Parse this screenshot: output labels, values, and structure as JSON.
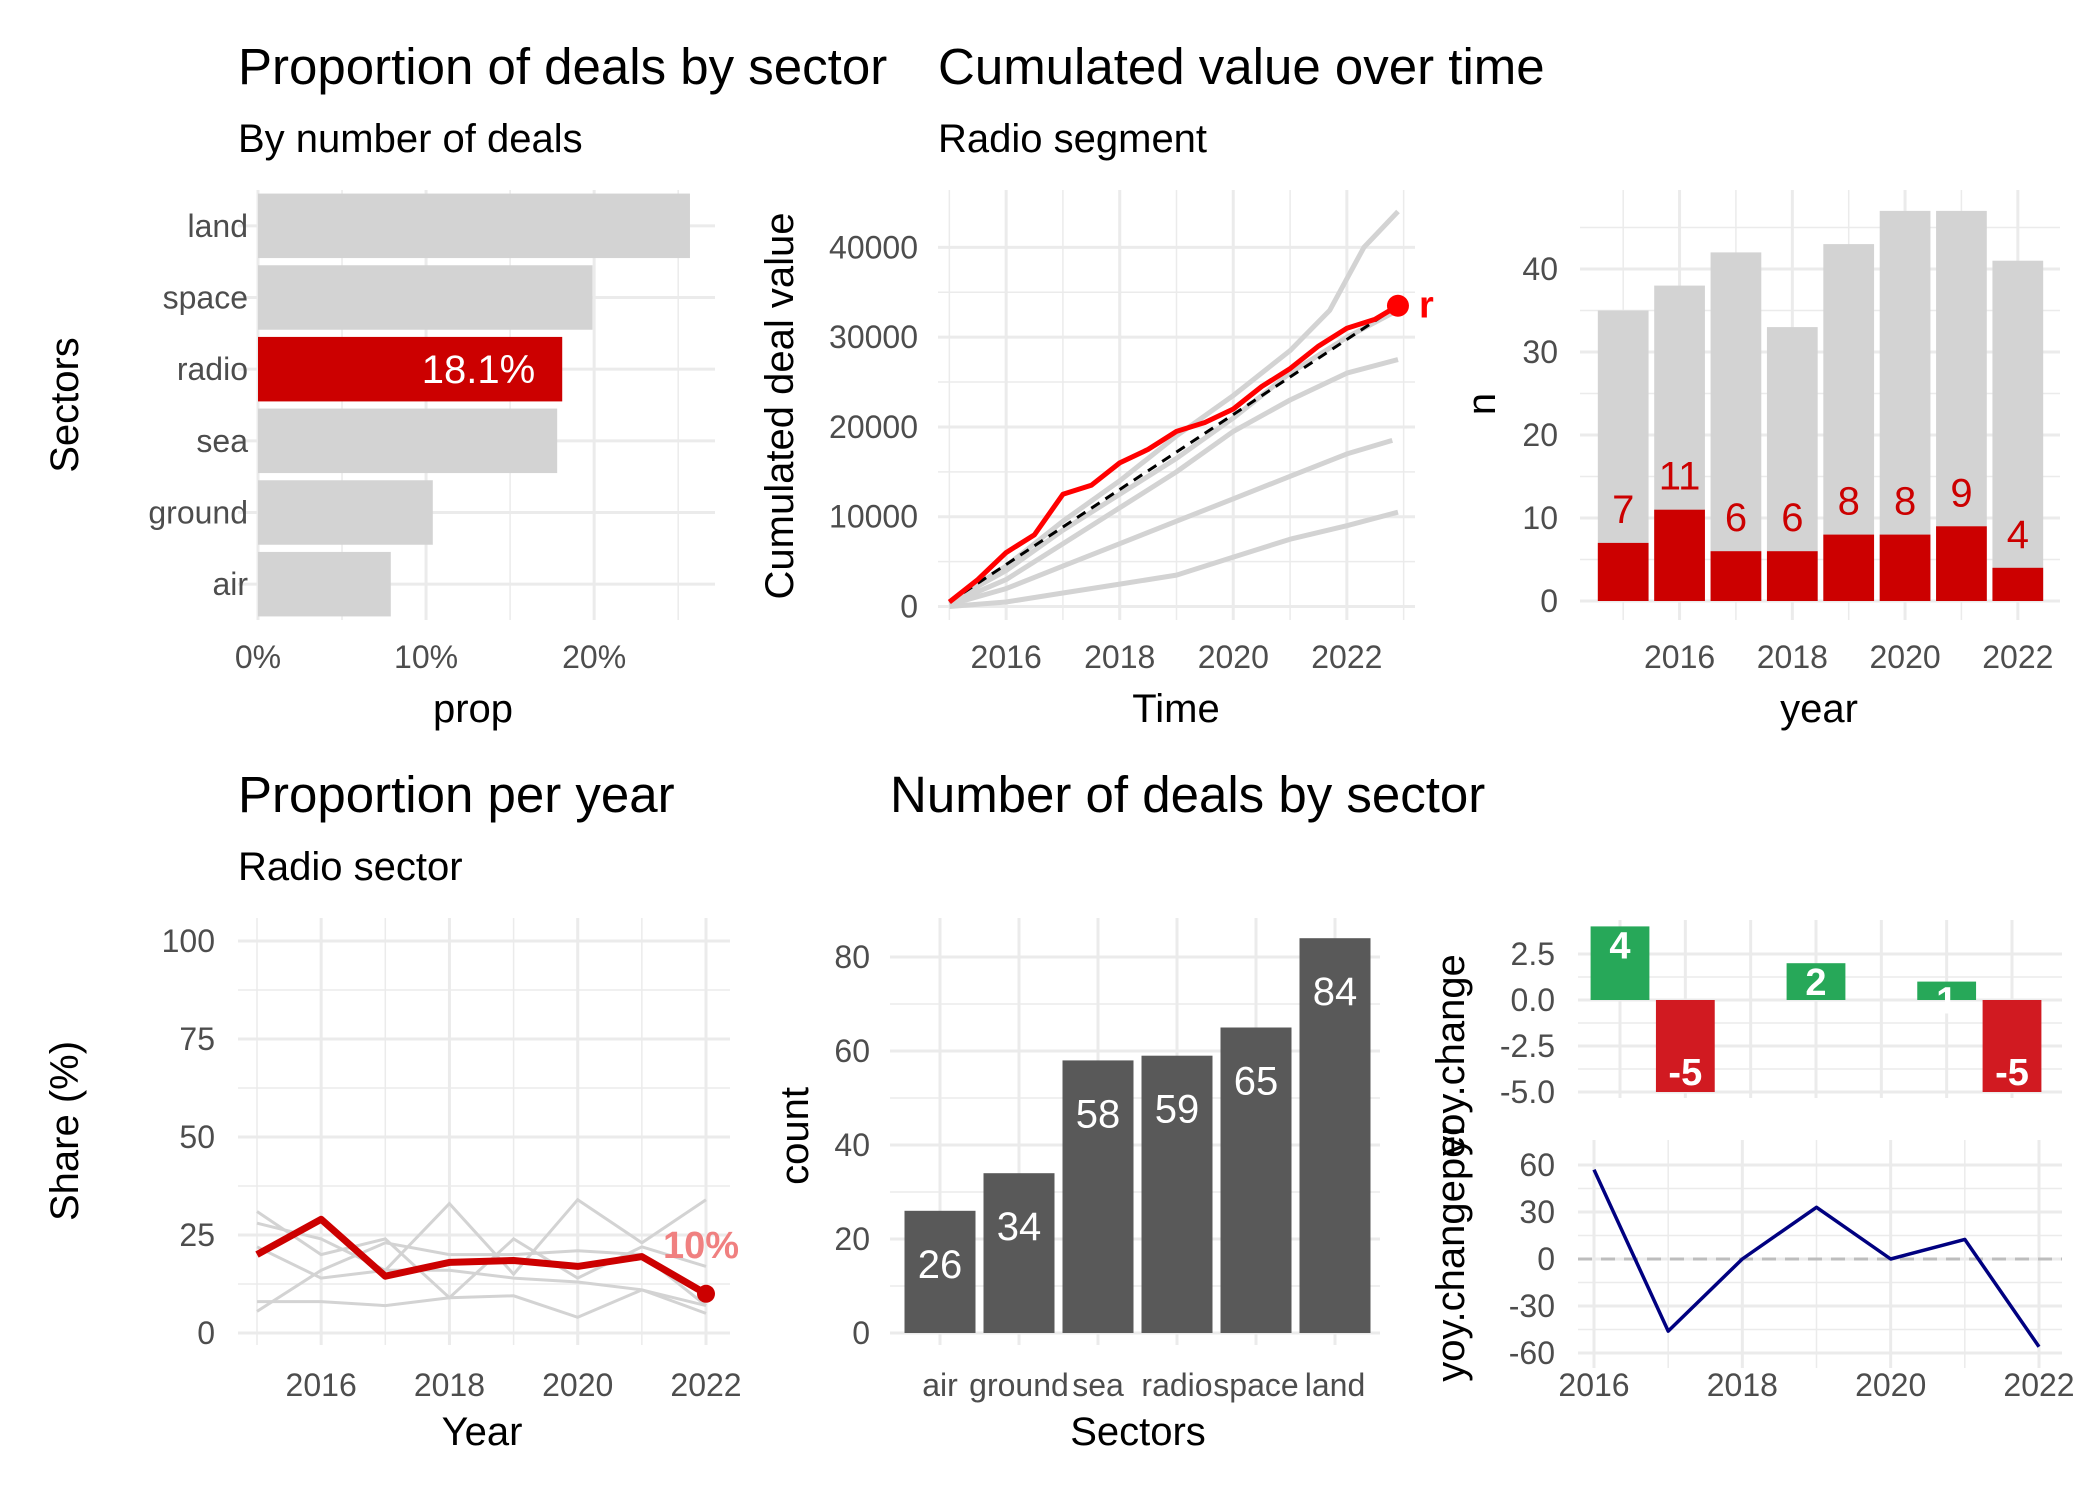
{
  "colors": {
    "highlight_red": "#cc0000",
    "line_red": "#ff0000",
    "grey_bar": "#d3d3d3",
    "dark_bar": "#595959",
    "pos_green": "#27a859",
    "neg_red": "#d11a21",
    "navy": "#000080",
    "label_salmon": "#f08080"
  },
  "chart_data": [
    {
      "id": "sector_share",
      "type": "bar",
      "orientation": "horizontal",
      "title": "Proportion of deals by sector",
      "subtitle": "By number of deals",
      "xlabel": "prop",
      "ylabel": "Sectors",
      "categories": [
        "air",
        "ground",
        "sea",
        "radio",
        "space",
        "land"
      ],
      "values": [
        0.079,
        0.104,
        0.178,
        0.181,
        0.199,
        0.257
      ],
      "highlight": "radio",
      "highlight_label": "18.1%",
      "xlim": [
        0,
        0.26
      ],
      "xticks": [
        "0%",
        "10%",
        "20%"
      ]
    },
    {
      "id": "cumulative",
      "type": "line",
      "title": "Cumulated value over time",
      "subtitle": "Radio segment",
      "xlabel": "Time",
      "ylabel": "Cumulated deal value",
      "xlim": [
        2014.8,
        2023.2
      ],
      "ylim": [
        -500,
        45500
      ],
      "yticks": [
        "0",
        "10000",
        "20000",
        "30000",
        "40000"
      ],
      "xticks": [
        "2016",
        "2018",
        "2020",
        "2022"
      ],
      "end_label": "r",
      "background_series": [
        {
          "x": [
            2015,
            2016,
            2017,
            2018,
            2019,
            2020,
            2021,
            2021.7,
            2022.3,
            2022.9
          ],
          "y": [
            500,
            4500,
            9500,
            14000,
            19000,
            23500,
            28500,
            33000,
            40000,
            44000
          ]
        },
        {
          "x": [
            2015,
            2016,
            2017,
            2018,
            2019,
            2020,
            2021,
            2022,
            2022.9
          ],
          "y": [
            500,
            4000,
            8500,
            12500,
            16500,
            21000,
            26000,
            30000,
            33000
          ]
        },
        {
          "x": [
            2015,
            2016,
            2017,
            2018,
            2019,
            2020,
            2021,
            2022,
            2022.9
          ],
          "y": [
            300,
            3000,
            7000,
            11000,
            15000,
            19500,
            23000,
            26000,
            27500
          ]
        },
        {
          "x": [
            2015,
            2016,
            2017,
            2018,
            2019,
            2020,
            2021,
            2022,
            2022.8
          ],
          "y": [
            200,
            2000,
            4500,
            7000,
            9500,
            12000,
            14500,
            17000,
            18500
          ]
        },
        {
          "x": [
            2015,
            2016,
            2017,
            2018,
            2019,
            2020,
            2021,
            2022,
            2022.9
          ],
          "y": [
            0,
            500,
            1500,
            2500,
            3500,
            5500,
            7500,
            9000,
            10500
          ]
        }
      ],
      "highlight_series": {
        "x": [
          2015,
          2015.5,
          2016,
          2016.5,
          2017,
          2017.5,
          2018,
          2018.5,
          2019,
          2019.5,
          2020,
          2020.5,
          2021,
          2021.5,
          2022,
          2022.5,
          2022.9
        ],
        "y": [
          500,
          3000,
          6000,
          8000,
          12500,
          13500,
          16000,
          17500,
          19500,
          20500,
          22000,
          24500,
          26500,
          29000,
          31000,
          32000,
          33500
        ]
      },
      "reference_line": {
        "x": [
          2015,
          2022.9
        ],
        "y": [
          500,
          33500
        ]
      }
    },
    {
      "id": "counts_per_year",
      "type": "bar",
      "xlabel": "year",
      "ylabel": "n",
      "categories": [
        2015,
        2016,
        2017,
        2018,
        2019,
        2020,
        2021,
        2022
      ],
      "series": [
        {
          "name": "",
          "values": [
            35,
            38,
            42,
            33,
            43,
            47,
            47,
            41
          ]
        },
        {
          "name": "",
          "values": [
            7,
            11,
            6,
            6,
            8,
            8,
            9,
            4
          ]
        }
      ],
      "labels": [
        "7",
        "11",
        "6",
        "6",
        "8",
        "8",
        "9",
        "4"
      ],
      "ylim": [
        -1.5,
        50
      ],
      "yticks": [
        "0",
        "10",
        "20",
        "30",
        "40"
      ],
      "xticks": [
        "2016",
        "2018",
        "2020",
        "2022"
      ]
    },
    {
      "id": "share_per_year",
      "type": "line",
      "title": "Proportion per year",
      "subtitle": "Radio sector",
      "xlabel": "Year",
      "ylabel": "Share (%)",
      "x": [
        2015,
        2016,
        2017,
        2018,
        2019,
        2020,
        2021,
        2022
      ],
      "highlight_values": [
        20,
        29,
        14.5,
        18,
        18.5,
        17,
        19.5,
        10
      ],
      "background_series": [
        {
          "values": [
            31,
            20,
            24,
            9,
            24,
            14,
            22,
            17
          ]
        },
        {
          "values": [
            28,
            24,
            16,
            33,
            15,
            34,
            23,
            34
          ]
        },
        {
          "values": [
            5.5,
            16,
            23,
            20,
            20,
            21,
            20,
            7
          ]
        },
        {
          "values": [
            8,
            8,
            7,
            9,
            9.5,
            4,
            11,
            7
          ]
        },
        {
          "values": [
            22,
            14,
            16,
            16,
            14,
            13,
            11,
            5
          ]
        }
      ],
      "end_label": "10%",
      "ylim": [
        -4,
        104
      ],
      "yticks": [
        "0",
        "25",
        "50",
        "75",
        "100"
      ],
      "xticks": [
        "2016",
        "2018",
        "2020",
        "2022"
      ]
    },
    {
      "id": "deals_by_sector",
      "type": "bar",
      "title": "Number of deals by sector",
      "xlabel": "Sectors",
      "ylabel": "count",
      "categories": [
        "air",
        "ground",
        "sea",
        "radio",
        "space",
        "land"
      ],
      "values": [
        26,
        34,
        58,
        59,
        65,
        84
      ],
      "ylim": [
        -3,
        88
      ],
      "yticks": [
        "0",
        "20",
        "40",
        "60",
        "80"
      ]
    },
    {
      "id": "yoy_change",
      "type": "bar",
      "ylabel": "yoy.change",
      "categories": [
        2016,
        2017,
        2018,
        2019,
        2020,
        2021,
        2022
      ],
      "values": [
        4,
        -5,
        0,
        2,
        0,
        1,
        -5
      ],
      "labels": [
        "4",
        "-5",
        "",
        "2",
        "",
        "1",
        "-5"
      ],
      "ylim": [
        -5,
        4
      ],
      "yticks": [
        "2.5",
        "0.0",
        "-2.5",
        "-5.0"
      ]
    },
    {
      "id": "yoy_change_percent",
      "type": "line",
      "ylabel": "yoy.changeper",
      "x": [
        2016,
        2017,
        2018,
        2019,
        2020,
        2021,
        2022
      ],
      "values": [
        57,
        -46,
        0,
        33,
        0,
        12.5,
        -56
      ],
      "ylim": [
        -68,
        68
      ],
      "yticks": [
        "60",
        "30",
        "0",
        "-30",
        "-60"
      ],
      "xticks": [
        "2016",
        "2018",
        "2020",
        "2022"
      ]
    }
  ]
}
